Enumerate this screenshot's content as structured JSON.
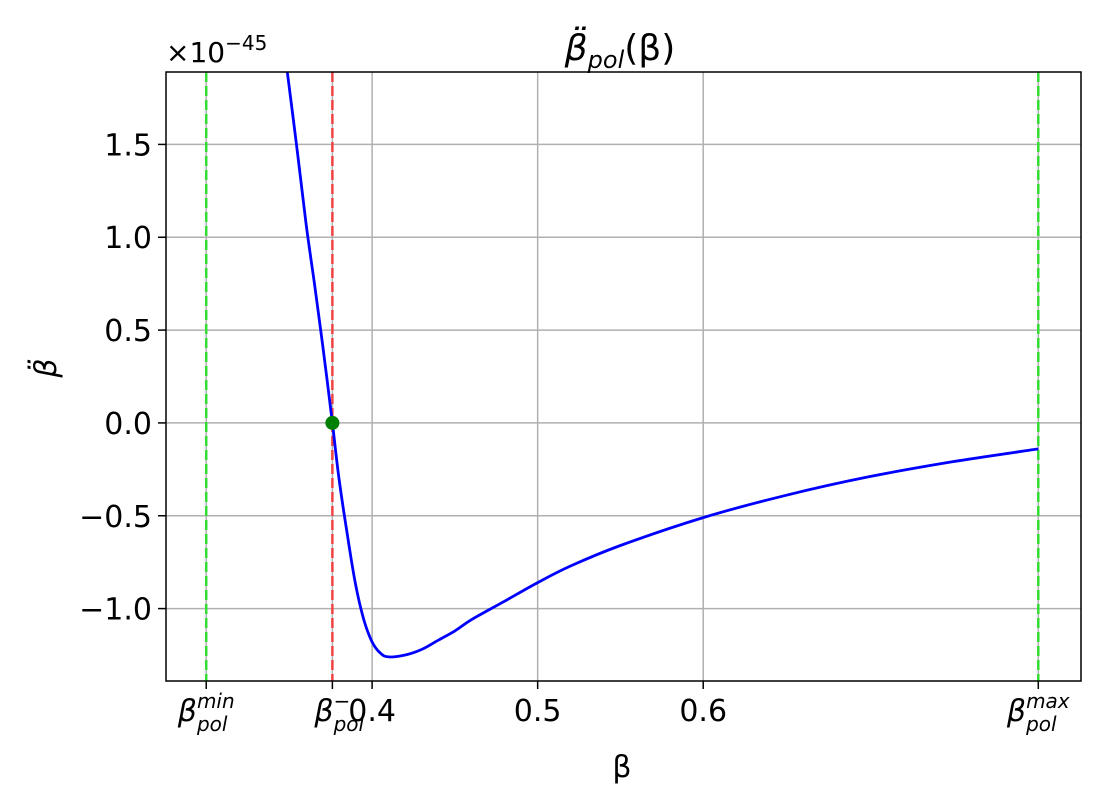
{
  "chart_data": {
    "type": "line",
    "title": {
      "symbol": "β̈",
      "subscript": "pol",
      "argument": "(β)"
    },
    "xlabel": "β",
    "ylabel": "β̈",
    "y_scale_label": {
      "base": "×10",
      "exponent": "−45"
    },
    "xlim": [
      0.2755,
      0.8282
    ],
    "ylim": [
      -1.39,
      1.89
    ],
    "grid": true,
    "x_ticks": [
      {
        "value": 0.2998,
        "label": "β",
        "sub": "pol",
        "sup": "min"
      },
      {
        "value": 0.376,
        "label": "β",
        "sub": "pol",
        "sup": "−"
      },
      {
        "value": 0.4,
        "label": "0.4"
      },
      {
        "value": 0.5,
        "label": "0.5"
      },
      {
        "value": 0.6,
        "label": "0.6"
      },
      {
        "value": 0.8024,
        "label": "β",
        "sub": "pol",
        "sup": "max"
      }
    ],
    "y_ticks": [
      {
        "value": 1.5,
        "label": "1.5"
      },
      {
        "value": 1.0,
        "label": "1.0"
      },
      {
        "value": 0.5,
        "label": "0.5"
      },
      {
        "value": 0.0,
        "label": "0.0"
      },
      {
        "value": -0.5,
        "label": "−0.5"
      },
      {
        "value": -1.0,
        "label": "−1.0"
      }
    ],
    "series": [
      {
        "color": "#0000ff",
        "x": [
          0.3488,
          0.355,
          0.36,
          0.365,
          0.37,
          0.376,
          0.38,
          0.385,
          0.39,
          0.395,
          0.4,
          0.405,
          0.41,
          0.42,
          0.43,
          0.44,
          0.45,
          0.46,
          0.48,
          0.5,
          0.52,
          0.55,
          0.6,
          0.65,
          0.7,
          0.75,
          0.8024
        ],
        "y": [
          1.89,
          1.45,
          1.08,
          0.76,
          0.43,
          0.0,
          -0.3,
          -0.6,
          -0.87,
          -1.06,
          -1.18,
          -1.24,
          -1.26,
          -1.25,
          -1.22,
          -1.17,
          -1.12,
          -1.06,
          -0.96,
          -0.86,
          -0.77,
          -0.66,
          -0.51,
          -0.39,
          -0.29,
          -0.21,
          -0.14
        ]
      }
    ],
    "vlines": [
      {
        "x": 0.2998,
        "color": "#33dd33",
        "style": "dashed"
      },
      {
        "x": 0.376,
        "color": "#ee4444",
        "style": "dashed"
      },
      {
        "x": 0.8024,
        "color": "#33dd33",
        "style": "dashed"
      }
    ],
    "points": [
      {
        "x": 0.376,
        "y": 0.0,
        "color": "#008000"
      }
    ]
  }
}
